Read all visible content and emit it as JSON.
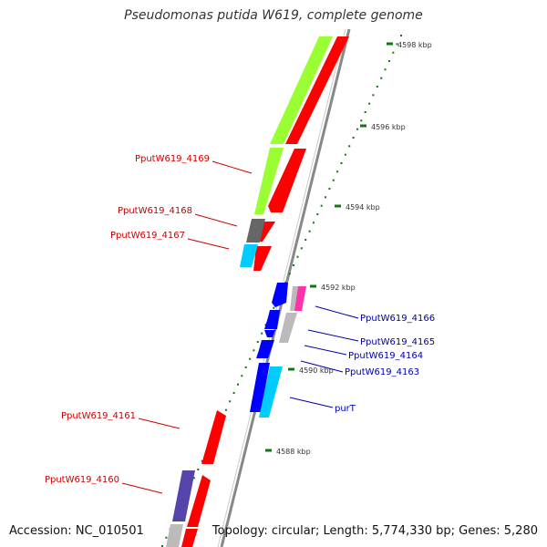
{
  "title": "Pseudomonas putida W619, complete genome",
  "accession": "Accession: NC_010501",
  "summary": "Topology: circular; Length: 5,774,330 bp; Genes: 5,280",
  "colors": {
    "reverse_label": "#cc0000",
    "forward_label": "#0000aa",
    "red_gene": "#ff0000",
    "lime_gene": "#99ff33",
    "blue_gene": "#0000ff",
    "cyan_gene": "#00ccff",
    "gray_gene": "#bbbbbb",
    "dark_gray_gene": "#666666",
    "purple_gene": "#5544aa",
    "magenta_gene": "#ff33aa",
    "tick": "#117711"
  },
  "kbp_ticks": [
    {
      "label": "4598 kbp"
    },
    {
      "label": "4596 kbp"
    },
    {
      "label": "4594 kbp"
    },
    {
      "label": "4592 kbp"
    },
    {
      "label": "4590 kbp"
    },
    {
      "label": "4588 kbp"
    }
  ],
  "gene_labels": [
    {
      "text": "PputW619_4169",
      "strand": "reverse"
    },
    {
      "text": "PputW619_4168",
      "strand": "reverse"
    },
    {
      "text": "PputW619_4167",
      "strand": "reverse"
    },
    {
      "text": "PputW619_4166",
      "strand": "forward"
    },
    {
      "text": "PputW619_4165",
      "strand": "forward"
    },
    {
      "text": "PputW619_4164",
      "strand": "forward"
    },
    {
      "text": "PputW619_4163",
      "strand": "forward"
    },
    {
      "text": "purT",
      "strand": "forward"
    },
    {
      "text": "PputW619_4161",
      "strand": "reverse"
    },
    {
      "text": "PputW619_4160",
      "strand": "reverse"
    }
  ]
}
